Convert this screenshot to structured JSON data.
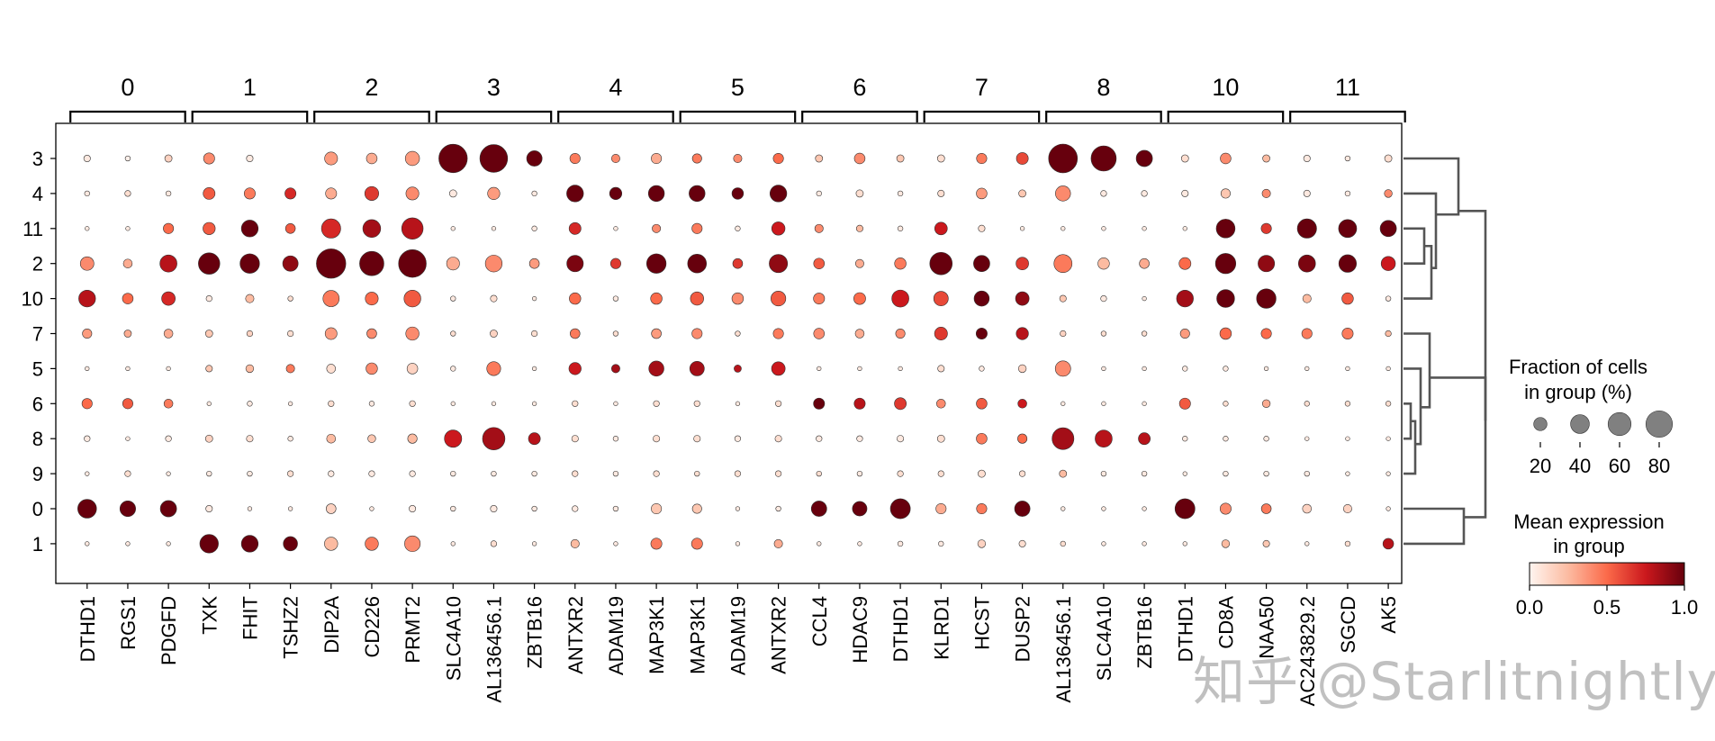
{
  "chart_data": {
    "type": "dotplot",
    "groups": [
      {
        "label": "0",
        "genes": [
          "DTHD1",
          "RGS1",
          "PDGFD"
        ]
      },
      {
        "label": "1",
        "genes": [
          "TXK",
          "FHIT",
          "TSHZ2"
        ]
      },
      {
        "label": "2",
        "genes": [
          "DIP2A",
          "CD226",
          "PRMT2"
        ]
      },
      {
        "label": "3",
        "genes": [
          "SLC4A10",
          "AL136456.1",
          "ZBTB16"
        ]
      },
      {
        "label": "4",
        "genes": [
          "ANTXR2",
          "ADAM19",
          "MAP3K1"
        ]
      },
      {
        "label": "5",
        "genes": [
          "MAP3K1",
          "ADAM19",
          "ANTXR2"
        ]
      },
      {
        "label": "6",
        "genes": [
          "CCL4",
          "HDAC9",
          "DTHD1"
        ]
      },
      {
        "label": "7",
        "genes": [
          "KLRD1",
          "HCST",
          "DUSP2"
        ]
      },
      {
        "label": "8",
        "genes": [
          "AL136456.1",
          "SLC4A10",
          "ZBTB16"
        ]
      },
      {
        "label": "10",
        "genes": [
          "DTHD1",
          "CD8A",
          "NAA50"
        ]
      },
      {
        "label": "11",
        "genes": [
          "AC243829.2",
          "SGCD",
          "AK5"
        ]
      }
    ],
    "rows": [
      "3",
      "4",
      "11",
      "2",
      "10",
      "7",
      "5",
      "6",
      "8",
      "9",
      "0",
      "1"
    ],
    "fraction": [
      [
        5,
        3,
        6,
        14,
        5,
        0,
        19,
        13,
        23,
        92,
        87,
        27,
        12,
        8,
        12,
        10,
        8,
        12,
        6,
        13,
        6,
        6,
        12,
        16,
        94,
        72,
        30,
        6,
        13,
        6,
        5,
        3,
        6
      ],
      [
        3,
        4,
        3,
        16,
        14,
        14,
        14,
        22,
        19,
        6,
        17,
        3,
        32,
        17,
        29,
        29,
        15,
        32,
        3,
        6,
        3,
        5,
        13,
        6,
        26,
        4,
        4,
        5,
        10,
        8,
        5,
        3,
        7
      ],
      [
        2,
        2,
        12,
        17,
        32,
        11,
        42,
        36,
        52,
        2,
        2,
        3,
        16,
        2,
        8,
        12,
        3,
        20,
        8,
        5,
        3,
        18,
        5,
        2,
        2,
        2,
        2,
        2,
        40,
        12,
        42,
        37,
        30
      ],
      [
        21,
        9,
        33,
        52,
        43,
        27,
        98,
        67,
        87,
        19,
        32,
        11,
        31,
        12,
        43,
        40,
        11,
        38,
        13,
        8,
        15,
        57,
        30,
        18,
        37,
        15,
        11,
        16,
        47,
        31,
        33,
        35,
        23
      ],
      [
        32,
        13,
        21,
        4,
        8,
        3,
        30,
        19,
        32,
        3,
        5,
        2,
        15,
        3,
        15,
        20,
        15,
        25,
        14,
        16,
        33,
        24,
        26,
        21,
        5,
        4,
        2,
        32,
        36,
        43,
        8,
        15,
        3
      ],
      [
        10,
        6,
        9,
        6,
        4,
        4,
        16,
        11,
        20,
        3,
        6,
        4,
        11,
        3,
        11,
        12,
        3,
        12,
        13,
        9,
        10,
        19,
        14,
        17,
        4,
        3,
        3,
        10,
        15,
        12,
        12,
        14,
        4
      ],
      [
        2,
        2,
        2,
        5,
        7,
        8,
        9,
        15,
        13,
        3,
        22,
        2,
        17,
        8,
        26,
        24,
        6,
        21,
        2,
        2,
        2,
        5,
        3,
        7,
        27,
        2,
        2,
        3,
        3,
        2,
        2,
        2,
        2
      ],
      [
        12,
        12,
        9,
        2,
        3,
        2,
        4,
        3,
        4,
        2,
        2,
        2,
        4,
        2,
        4,
        4,
        2,
        4,
        14,
        14,
        16,
        9,
        13,
        9,
        2,
        2,
        2,
        14,
        3,
        7,
        3,
        3,
        3
      ],
      [
        4,
        2,
        4,
        6,
        5,
        3,
        9,
        7,
        10,
        34,
        57,
        16,
        5,
        3,
        5,
        5,
        4,
        5,
        4,
        4,
        5,
        6,
        13,
        10,
        54,
        33,
        16,
        3,
        3,
        3,
        2,
        2,
        2
      ],
      [
        2,
        4,
        2,
        3,
        3,
        4,
        4,
        4,
        4,
        3,
        3,
        3,
        4,
        3,
        4,
        3,
        4,
        4,
        3,
        3,
        4,
        4,
        6,
        4,
        6,
        3,
        3,
        2,
        3,
        3,
        3,
        2,
        2
      ],
      [
        40,
        28,
        30,
        5,
        2,
        2,
        11,
        2,
        5,
        3,
        5,
        3,
        4,
        3,
        12,
        10,
        2,
        3,
        27,
        24,
        45,
        12,
        12,
        27,
        2,
        2,
        2,
        45,
        14,
        11,
        9,
        8,
        2
      ],
      [
        2,
        2,
        2,
        39,
        32,
        23,
        20,
        20,
        28,
        2,
        4,
        2,
        8,
        2,
        14,
        14,
        2,
        8,
        2,
        2,
        3,
        3,
        7,
        5,
        3,
        2,
        2,
        2,
        7,
        5,
        2,
        3,
        13
      ]
    ],
    "expression": [
      [
        0.05,
        0.02,
        0.15,
        0.4,
        0.05,
        0,
        0.35,
        0.3,
        0.35,
        1.0,
        1.0,
        1.0,
        0.45,
        0.4,
        0.3,
        0.45,
        0.4,
        0.5,
        0.2,
        0.4,
        0.2,
        0.1,
        0.45,
        0.6,
        1.0,
        1.0,
        1.0,
        0.1,
        0.4,
        0.25,
        0.05,
        0.05,
        0.1
      ],
      [
        0.05,
        0.1,
        0.05,
        0.55,
        0.45,
        0.7,
        0.3,
        0.65,
        0.4,
        0.05,
        0.35,
        0.05,
        1.0,
        1.0,
        1.0,
        1.0,
        1.0,
        1.0,
        0.05,
        0.1,
        0.05,
        0.1,
        0.35,
        0.2,
        0.4,
        0.05,
        0.05,
        0.05,
        0.2,
        0.4,
        0.05,
        0.05,
        0.4
      ],
      [
        0.05,
        0.05,
        0.5,
        0.55,
        1.0,
        0.55,
        0.7,
        0.85,
        0.8,
        0.05,
        0.05,
        0.05,
        0.7,
        0.05,
        0.4,
        0.45,
        0.05,
        0.75,
        0.4,
        0.25,
        0.05,
        0.75,
        0.1,
        0.05,
        0.05,
        0.05,
        0.05,
        0.05,
        1.0,
        0.65,
        1.0,
        1.0,
        1.0
      ],
      [
        0.4,
        0.3,
        0.8,
        1.0,
        1.0,
        0.9,
        1.0,
        1.0,
        1.0,
        0.3,
        0.4,
        0.35,
        0.95,
        0.65,
        1.0,
        1.0,
        0.65,
        0.9,
        0.55,
        0.3,
        0.45,
        1.0,
        1.0,
        0.65,
        0.45,
        0.25,
        0.3,
        0.5,
        1.0,
        0.9,
        0.95,
        1.0,
        0.75
      ],
      [
        0.8,
        0.5,
        0.7,
        0.05,
        0.25,
        0.1,
        0.45,
        0.5,
        0.55,
        0.05,
        0.1,
        0.05,
        0.5,
        0.05,
        0.5,
        0.55,
        0.4,
        0.55,
        0.45,
        0.5,
        0.75,
        0.6,
        1.0,
        0.9,
        0.2,
        0.05,
        0.05,
        0.85,
        1.0,
        1.0,
        0.25,
        0.55,
        0.05
      ],
      [
        0.35,
        0.3,
        0.3,
        0.2,
        0.15,
        0.1,
        0.35,
        0.4,
        0.4,
        0.1,
        0.15,
        0.1,
        0.45,
        0.1,
        0.35,
        0.4,
        0.1,
        0.45,
        0.4,
        0.3,
        0.4,
        0.65,
        1.0,
        0.8,
        0.15,
        0.1,
        0.1,
        0.35,
        0.5,
        0.5,
        0.45,
        0.45,
        0.25
      ],
      [
        0.05,
        0.05,
        0.05,
        0.2,
        0.25,
        0.45,
        0.1,
        0.4,
        0.15,
        0.05,
        0.45,
        0.05,
        0.75,
        0.85,
        0.85,
        0.85,
        0.8,
        0.75,
        0.05,
        0.05,
        0.05,
        0.1,
        0.05,
        0.15,
        0.4,
        0.05,
        0.05,
        0.05,
        0.05,
        0.05,
        0.05,
        0.05,
        0.05
      ],
      [
        0.5,
        0.55,
        0.45,
        0.05,
        0.05,
        0.05,
        0.1,
        0.05,
        0.1,
        0.05,
        0.05,
        0.05,
        0.1,
        0.05,
        0.1,
        0.1,
        0.05,
        0.1,
        1.0,
        0.8,
        0.65,
        0.4,
        0.55,
        0.75,
        0.05,
        0.05,
        0.05,
        0.55,
        0.1,
        0.3,
        0.1,
        0.1,
        0.1
      ],
      [
        0.05,
        0.05,
        0.05,
        0.15,
        0.1,
        0.05,
        0.25,
        0.2,
        0.25,
        0.75,
        0.85,
        0.8,
        0.1,
        0.05,
        0.1,
        0.1,
        0.05,
        0.1,
        0.05,
        0.05,
        0.05,
        0.1,
        0.45,
        0.5,
        0.85,
        0.8,
        0.8,
        0.05,
        0.05,
        0.05,
        0.05,
        0.05,
        0.05
      ],
      [
        0.05,
        0.1,
        0.05,
        0.05,
        0.05,
        0.1,
        0.05,
        0.05,
        0.05,
        0.05,
        0.05,
        0.05,
        0.1,
        0.05,
        0.1,
        0.1,
        0.1,
        0.1,
        0.1,
        0.05,
        0.1,
        0.1,
        0.1,
        0.1,
        0.25,
        0.05,
        0.05,
        0.05,
        0.05,
        0.05,
        0.05,
        0.05,
        0.05
      ],
      [
        1.0,
        1.0,
        1.0,
        0.05,
        0.05,
        0.05,
        0.15,
        0.05,
        0.05,
        0.05,
        0.05,
        0.05,
        0.05,
        0.05,
        0.2,
        0.2,
        0.05,
        0.05,
        1.0,
        1.0,
        1.0,
        0.3,
        0.45,
        1.0,
        0.05,
        0.05,
        0.05,
        1.0,
        0.4,
        0.45,
        0.15,
        0.15,
        0.05
      ],
      [
        0.05,
        0.05,
        0.05,
        1.0,
        1.0,
        1.0,
        0.25,
        0.45,
        0.4,
        0.05,
        0.1,
        0.05,
        0.25,
        0.05,
        0.45,
        0.45,
        0.05,
        0.3,
        0.05,
        0.05,
        0.05,
        0.05,
        0.15,
        0.1,
        0.1,
        0.05,
        0.05,
        0.05,
        0.25,
        0.2,
        0.05,
        0.1,
        0.8
      ]
    ],
    "dendrogram_order": [
      "3",
      "4",
      "11",
      "2",
      "10",
      "7",
      "5",
      "6",
      "8",
      "9",
      "0",
      "1"
    ],
    "legend": {
      "size_title": "Fraction of cells\nin group (%)",
      "size_ticks": [
        20,
        40,
        60,
        80
      ],
      "color_title": "Mean expression\nin group",
      "color_ticks": [
        "0.0",
        "0.5",
        "1.0"
      ],
      "color_range": [
        0,
        1
      ],
      "colormap": [
        "#fff5f0",
        "#fcbba1",
        "#fb6a4a",
        "#cb181d",
        "#67000d"
      ]
    },
    "grid": false
  },
  "watermark": "知乎 @Starlitnightly"
}
